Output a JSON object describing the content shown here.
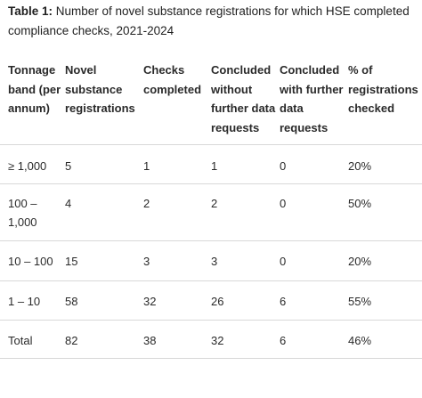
{
  "caption": {
    "prefix": "Table 1:",
    "text": " Number of novel substance registrations for which HSE completed compliance checks, 2021-2024"
  },
  "table": {
    "headers": [
      "Tonnage band (per annum)",
      "Novel substance registrations",
      "Checks completed",
      "Concluded without further data requests",
      "Concluded with further data requests",
      "% of registrations checked"
    ],
    "rows": [
      [
        "≥ 1,000",
        "5",
        "1",
        "1",
        "0",
        "20%"
      ],
      [
        "100 – 1,000",
        "4",
        "2",
        "2",
        "0",
        "50%"
      ],
      [
        "10 – 100",
        "15",
        "3",
        "3",
        "0",
        "20%"
      ],
      [
        "1 – 10",
        "58",
        "32",
        "26",
        "6",
        "55%"
      ],
      [
        "Total",
        "82",
        "38",
        "32",
        "6",
        "46%"
      ]
    ]
  }
}
